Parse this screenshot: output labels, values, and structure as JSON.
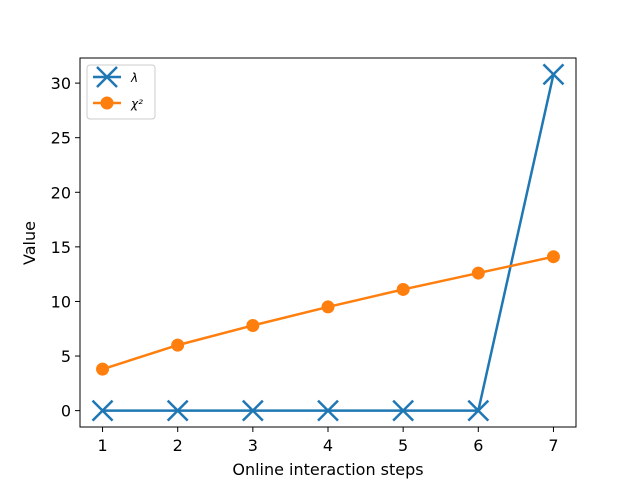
{
  "chart_data": {
    "type": "line",
    "xlabel": "Online interaction steps",
    "ylabel": "Value",
    "x": [
      1,
      2,
      3,
      4,
      5,
      6,
      7
    ],
    "xlim": [
      0.7,
      7.3
    ],
    "ylim": [
      -1.5,
      32.3
    ],
    "xticks": [
      1,
      2,
      3,
      4,
      5,
      6,
      7
    ],
    "yticks": [
      0,
      5,
      10,
      15,
      20,
      25,
      30
    ],
    "grid": false,
    "legend_position": "top-left",
    "series": [
      {
        "name": "λ",
        "marker": "x",
        "color": "#1f77b4",
        "values": [
          0,
          0,
          0,
          0,
          0,
          0,
          30.8
        ]
      },
      {
        "name": "χ²",
        "marker": "circle",
        "color": "#ff7f0e",
        "values": [
          3.8,
          6.0,
          7.8,
          9.5,
          11.1,
          12.6,
          14.1
        ]
      }
    ]
  }
}
